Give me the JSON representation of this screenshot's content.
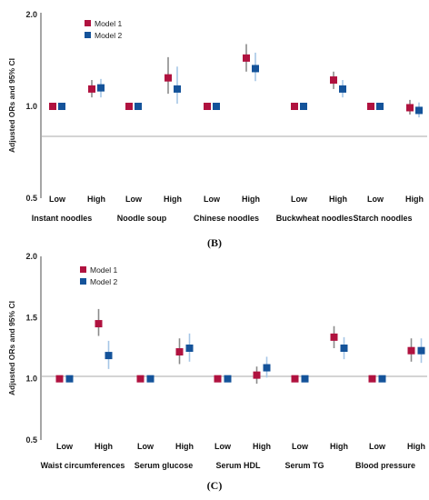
{
  "colors": {
    "model1": "#b0123f",
    "model2": "#14539a",
    "axis": "#888888",
    "ci1": "#8a8a8a",
    "ci2": "#a6c6e6"
  },
  "chart_data": [
    {
      "type": "scatter",
      "panel_label": "(B)",
      "ylabel": "Adjusted ORs and 95% CI",
      "y_scale": "log",
      "yticks": [
        "0.5",
        "1.0",
        "2.0"
      ],
      "ylim": [
        0.5,
        2.0
      ],
      "grid": false,
      "legend_position": "top-left",
      "legend": [
        "Model 1",
        "Model 2"
      ],
      "level_labels": [
        "Low",
        "High"
      ],
      "groups": [
        {
          "label": "Instant noodles",
          "model1": {
            "low": {
              "or": 1.0
            },
            "high": {
              "or": 1.14,
              "lo": 1.07,
              "hi": 1.22
            }
          },
          "model2": {
            "low": {
              "or": 1.0
            },
            "high": {
              "or": 1.15,
              "lo": 1.07,
              "hi": 1.23
            }
          }
        },
        {
          "label": "Noodle soup",
          "model1": {
            "low": {
              "or": 1.0
            },
            "high": {
              "or": 1.24,
              "lo": 1.1,
              "hi": 1.45
            }
          },
          "model2": {
            "low": {
              "or": 1.0
            },
            "high": {
              "or": 1.14,
              "lo": 1.02,
              "hi": 1.35
            }
          }
        },
        {
          "label": "Chinese noodles",
          "model1": {
            "low": {
              "or": 1.0
            },
            "high": {
              "or": 1.44,
              "lo": 1.3,
              "hi": 1.6
            }
          },
          "model2": {
            "low": {
              "or": 1.0
            },
            "high": {
              "or": 1.33,
              "lo": 1.21,
              "hi": 1.5
            }
          }
        },
        {
          "label": "Buckwheat noodles",
          "model1": {
            "low": {
              "or": 1.0
            },
            "high": {
              "or": 1.22,
              "lo": 1.14,
              "hi": 1.3
            }
          },
          "model2": {
            "low": {
              "or": 1.0
            },
            "high": {
              "or": 1.14,
              "lo": 1.07,
              "hi": 1.22
            }
          }
        },
        {
          "label": "Starch noodles",
          "model1": {
            "low": {
              "or": 1.0
            },
            "high": {
              "or": 0.99,
              "lo": 0.94,
              "hi": 1.05
            }
          },
          "model2": {
            "low": {
              "or": 1.0
            },
            "high": {
              "or": 0.97,
              "lo": 0.92,
              "hi": 1.03
            }
          }
        }
      ]
    },
    {
      "type": "scatter",
      "panel_label": "(C)",
      "ylabel": "Adjusted ORs and 95% CI",
      "y_scale": "linear",
      "yticks": [
        "0.5",
        "1.0",
        "1.5",
        "2.0"
      ],
      "ylim": [
        0.5,
        2.0
      ],
      "grid": false,
      "legend_position": "top-left",
      "legend": [
        "Model 1",
        "Model 2"
      ],
      "level_labels": [
        "Low",
        "High"
      ],
      "groups": [
        {
          "label": "Waist circumferences",
          "model1": {
            "low": {
              "or": 1.0
            },
            "high": {
              "or": 1.45,
              "lo": 1.35,
              "hi": 1.57
            }
          },
          "model2": {
            "low": {
              "or": 1.0
            },
            "high": {
              "or": 1.19,
              "lo": 1.08,
              "hi": 1.31
            }
          }
        },
        {
          "label": "Serum glucose",
          "model1": {
            "low": {
              "or": 1.0
            },
            "high": {
              "or": 1.22,
              "lo": 1.12,
              "hi": 1.33
            }
          },
          "model2": {
            "low": {
              "or": 1.0
            },
            "high": {
              "or": 1.25,
              "lo": 1.14,
              "hi": 1.37
            }
          }
        },
        {
          "label": "Serum HDL",
          "model1": {
            "low": {
              "or": 1.0
            },
            "high": {
              "or": 1.03,
              "lo": 0.96,
              "hi": 1.1
            }
          },
          "model2": {
            "low": {
              "or": 1.0
            },
            "high": {
              "or": 1.09,
              "lo": 1.01,
              "hi": 1.18
            }
          }
        },
        {
          "label": "Serum TG",
          "model1": {
            "low": {
              "or": 1.0
            },
            "high": {
              "or": 1.34,
              "lo": 1.25,
              "hi": 1.43
            }
          },
          "model2": {
            "low": {
              "or": 1.0
            },
            "high": {
              "or": 1.25,
              "lo": 1.16,
              "hi": 1.34
            }
          }
        },
        {
          "label": "Blood pressure",
          "model1": {
            "low": {
              "or": 1.0
            },
            "high": {
              "or": 1.23,
              "lo": 1.14,
              "hi": 1.33
            }
          },
          "model2": {
            "low": {
              "or": 1.0
            },
            "high": {
              "or": 1.23,
              "lo": 1.13,
              "hi": 1.33
            }
          }
        }
      ]
    }
  ]
}
